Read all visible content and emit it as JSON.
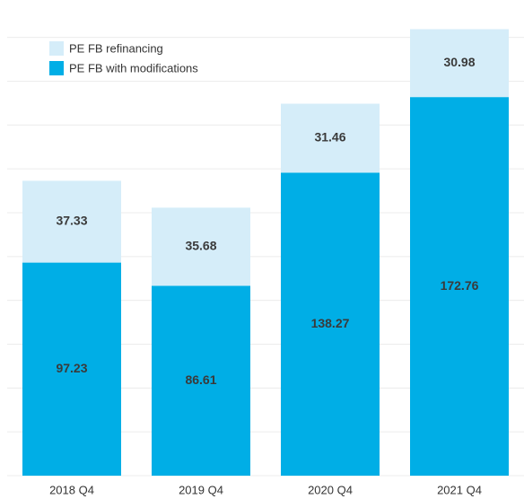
{
  "chart_data": {
    "type": "stacked_bar",
    "categories": [
      "2018 Q4",
      "2019 Q4",
      "2020 Q4",
      "2021 Q4"
    ],
    "series": [
      {
        "name": "PE FB with modifications",
        "color": "#00aee6",
        "values": [
          97.23,
          86.61,
          138.27,
          172.76
        ]
      },
      {
        "name": "PE FB refinancing",
        "color": "#d5edf9",
        "values": [
          37.33,
          35.68,
          31.46,
          30.98
        ]
      }
    ],
    "ylim": [
      0,
      215
    ],
    "yticks": [
      0,
      20,
      40,
      60,
      80,
      100,
      120,
      140,
      160,
      180,
      200
    ],
    "grid": true,
    "legend": "top-left"
  }
}
